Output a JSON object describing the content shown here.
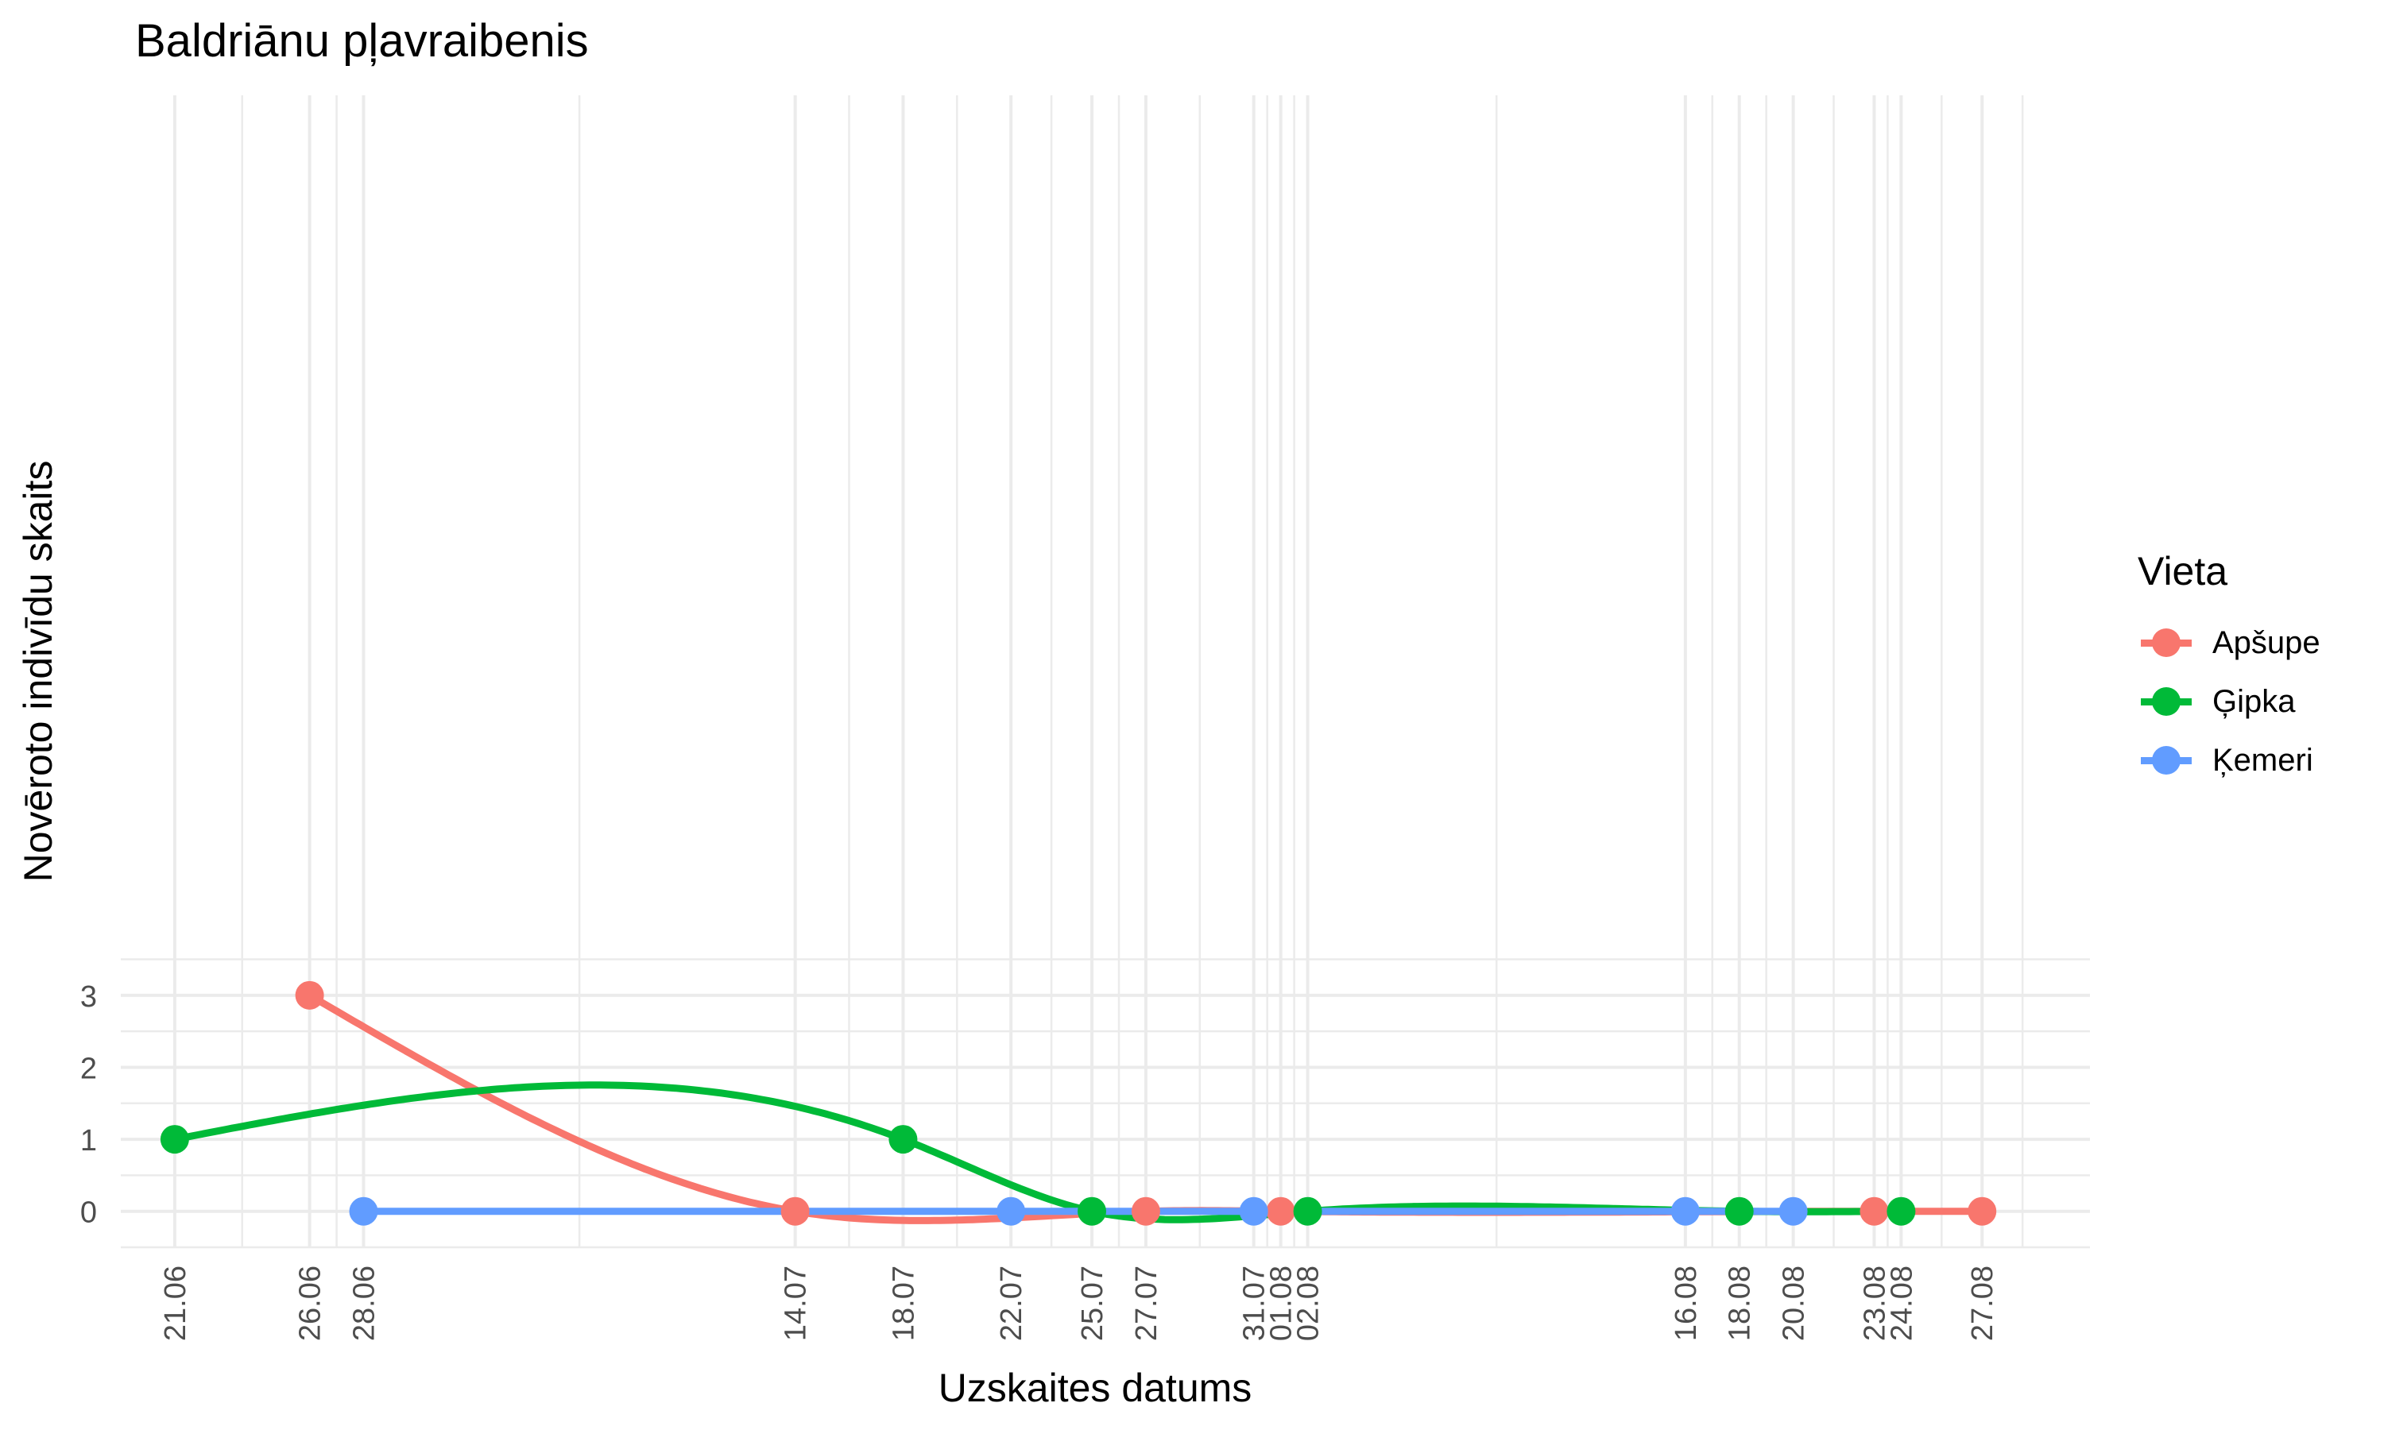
{
  "chart_data": {
    "type": "line",
    "title": "Baldriānu pļavraibenis",
    "xlabel": "Uzskaites datums",
    "ylabel": "Novēroto indivīdu skaits",
    "ylim": [
      -0.5,
      15.5
    ],
    "yticks": [
      0,
      1,
      2,
      3
    ],
    "ytick_labels": [
      "0",
      "1",
      "2",
      "3"
    ],
    "xlim": [
      "2020-06-19",
      "2020-08-31"
    ],
    "x_major_gridlines": [
      "2020-06-21",
      "2020-06-26",
      "2020-06-28",
      "2020-07-14",
      "2020-07-18",
      "2020-07-22",
      "2020-07-25",
      "2020-07-27",
      "2020-07-31",
      "2020-08-01",
      "2020-08-02",
      "2020-08-16",
      "2020-08-18",
      "2020-08-20",
      "2020-08-23",
      "2020-08-24",
      "2020-08-27"
    ],
    "xticks": [
      "2020-06-21",
      "2020-06-26",
      "2020-06-28",
      "2020-07-14",
      "2020-07-18",
      "2020-07-22",
      "2020-07-25",
      "2020-07-27",
      "2020-07-31",
      "2020-08-01",
      "2020-08-02",
      "2020-08-16",
      "2020-08-18",
      "2020-08-20",
      "2020-08-23",
      "2020-08-24",
      "2020-08-27"
    ],
    "xtick_labels": [
      "21.06",
      "26.06",
      "28.06",
      "14.07",
      "18.07",
      "22.07",
      "25.07",
      "27.07",
      "31.07",
      "01.08",
      "02.08",
      "16.08",
      "18.08",
      "20.08",
      "23.08",
      "24.08",
      "27.08"
    ],
    "smooth": true,
    "grid": true,
    "legend_position": "right",
    "legend_title": "Vieta",
    "series": [
      {
        "name": "Apšupe",
        "color": "#F8766D",
        "x": [
          "2020-06-26",
          "2020-07-14",
          "2020-07-27",
          "2020-08-01",
          "2020-08-23",
          "2020-08-27"
        ],
        "y": [
          3,
          0,
          0,
          0,
          0,
          0
        ]
      },
      {
        "name": "Ģipka",
        "color": "#00BA38",
        "x": [
          "2020-06-21",
          "2020-07-18",
          "2020-07-25",
          "2020-08-02",
          "2020-08-18",
          "2020-08-24"
        ],
        "y": [
          1,
          1,
          0,
          0,
          0,
          0
        ]
      },
      {
        "name": "Ķemeri",
        "color": "#619CFF",
        "x": [
          "2020-06-28",
          "2020-07-22",
          "2020-07-31",
          "2020-08-16",
          "2020-08-20"
        ],
        "y": [
          0,
          0,
          0,
          0,
          0
        ]
      }
    ]
  }
}
